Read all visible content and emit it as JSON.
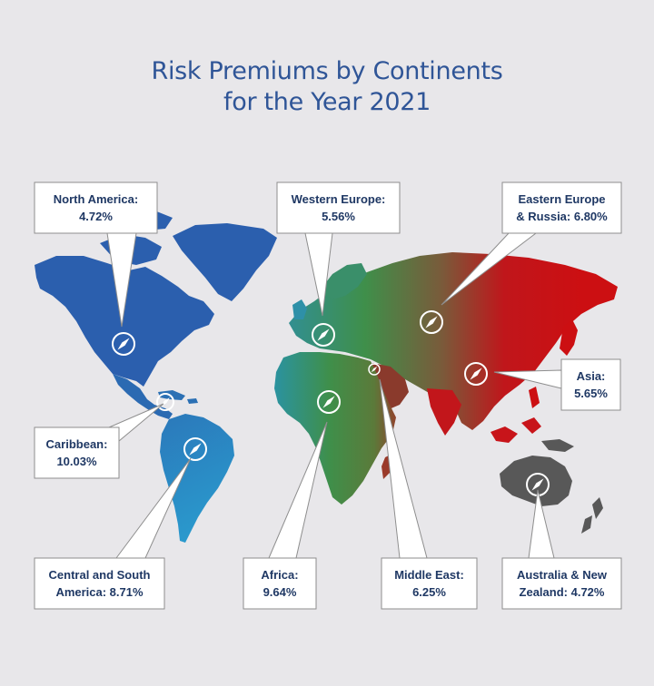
{
  "title": {
    "line1": "Risk Premiums by Continents",
    "line2": "for the Year 2021"
  },
  "colors": {
    "background": "#e8e7ea",
    "title": "#2f5597",
    "label_text": "#1f3864",
    "americas": "#2b5fae",
    "south_america": "#2a8fc4",
    "africa_europe_mid": "#3c8f5a",
    "asia": "#cc0f12",
    "oceania": "#585858"
  },
  "icon": "compass-icon",
  "regions": [
    {
      "id": "north-america",
      "line1": "North America:",
      "line2": "4.72%",
      "premium_pct": 4.72
    },
    {
      "id": "western-europe",
      "line1": "Western Europe:",
      "line2": "5.56%",
      "premium_pct": 5.56
    },
    {
      "id": "eastern-europe-russia",
      "line1": "Eastern Europe",
      "line2": "& Russia: 6.80%",
      "premium_pct": 6.8
    },
    {
      "id": "asia",
      "line1": "Asia:",
      "line2": "5.65%",
      "premium_pct": 5.65
    },
    {
      "id": "caribbean",
      "line1": "Caribbean:",
      "line2": "10.03%",
      "premium_pct": 10.03
    },
    {
      "id": "central-south-america",
      "line1": "Central and South",
      "line2": "America: 8.71%",
      "premium_pct": 8.71
    },
    {
      "id": "africa",
      "line1": "Africa:",
      "line2": "9.64%",
      "premium_pct": 9.64
    },
    {
      "id": "middle-east",
      "line1": "Middle East:",
      "line2": "6.25%",
      "premium_pct": 6.25
    },
    {
      "id": "australia-new-zealand",
      "line1": "Australia & New",
      "line2": "Zealand: 4.72%",
      "premium_pct": 4.72
    }
  ]
}
